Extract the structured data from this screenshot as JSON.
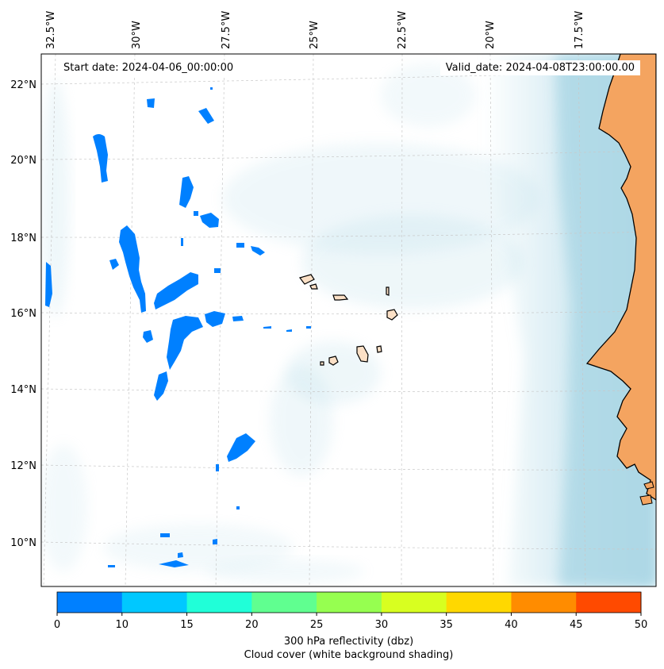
{
  "header": {
    "start_label": "Start date:",
    "start_value": "2024-04-06_00:00:00",
    "valid_label": "Valid_date:",
    "valid_value": "2024-04-08T23:00:00.00"
  },
  "map": {
    "longitude_labels": [
      "32.5°W",
      "30°W",
      "27.5°W",
      "25°W",
      "22.5°W",
      "20°W",
      "17.5°W"
    ],
    "latitude_labels": [
      "22°N",
      "20°N",
      "18°N",
      "16°N",
      "14°N",
      "12°N",
      "10°N"
    ],
    "colors": {
      "land": "#f4a460",
      "islands": "#fbe0c6",
      "reflectivity_low": "#0080ff",
      "cloud_shading": "#add8e6",
      "coastline": "#000000"
    }
  },
  "colorbar": {
    "ticks": [
      "0",
      "10",
      "15",
      "20",
      "25",
      "30",
      "35",
      "40",
      "45",
      "50"
    ],
    "colors": [
      "#0080ff",
      "#00c8ff",
      "#20ffd8",
      "#60ff90",
      "#96ff50",
      "#d8ff20",
      "#ffd800",
      "#ff8c00",
      "#ff4a00"
    ],
    "label_line1": "300 hPa reflectivity (dbz)",
    "label_line2": "Cloud cover (white background shading)"
  }
}
